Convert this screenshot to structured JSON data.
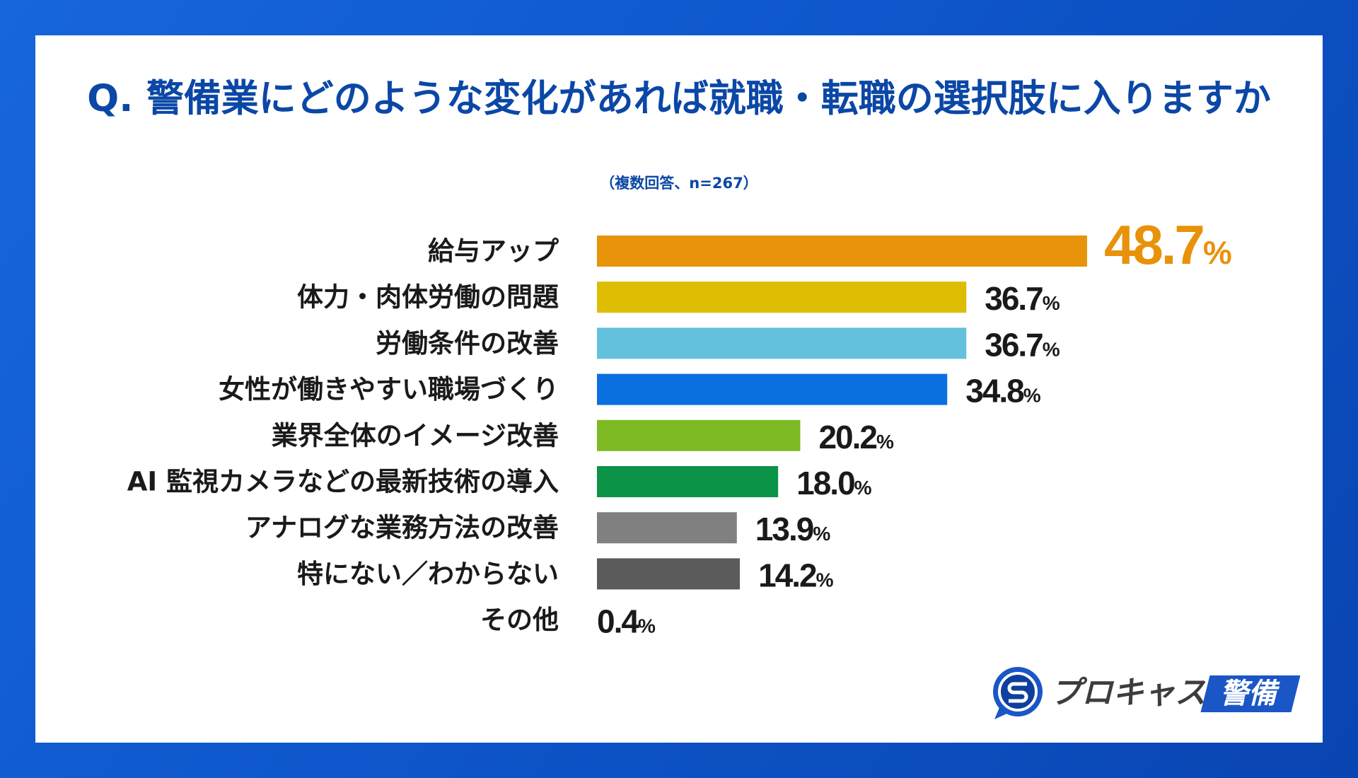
{
  "chart_data": {
    "type": "bar",
    "title": "Q. 警備業にどのような変化があれば就職・転職の選択肢に入りますか",
    "subtitle": "（複数回答、n=267）",
    "categories": [
      "給与アップ",
      "体力・肉体労働の問題",
      "労働条件の改善",
      "女性が働きやすい職場づくり",
      "業界全体のイメージ改善",
      "AI 監視カメラなどの最新技術の導入",
      "アナログな業務方法の改善",
      "特にない／わからない",
      "その他"
    ],
    "values": [
      48.7,
      36.7,
      36.7,
      34.8,
      20.2,
      18.0,
      13.9,
      14.2,
      0.4
    ],
    "value_labels": [
      "48.7",
      "36.7",
      "36.7",
      "34.8",
      "20.2",
      "18.0",
      "13.9",
      "14.2",
      "0.4"
    ],
    "value_unit": "%",
    "colors": [
      "#E8940A",
      "#DDBD02",
      "#63C1DD",
      "#0A70DF",
      "#7DBA24",
      "#0B9348",
      "#808080",
      "#5B5B5B",
      null
    ],
    "highlight_index": 0,
    "highlight_color": "#E8920A",
    "grid": false
  },
  "logo": {
    "icon": "prokyas-s-icon",
    "name": "プロキャス",
    "badge": "警備"
  },
  "theme": {
    "title": "#0B47A6",
    "label": "#1A1A1A",
    "brand": "#1A56C6"
  }
}
